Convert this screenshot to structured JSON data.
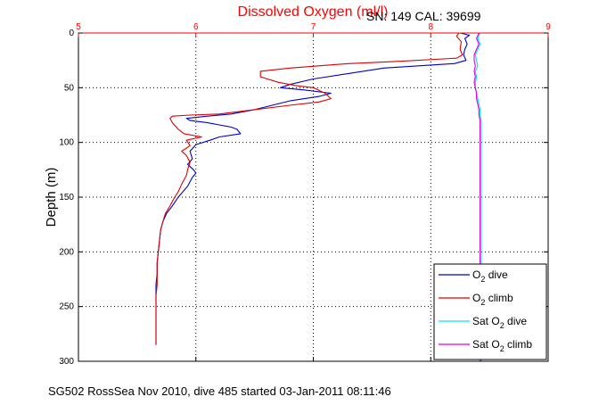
{
  "header": {
    "title": "Dissolved Oxygen (ml/l)",
    "serial": "SN: 149  CAL: 39699"
  },
  "footer": {
    "caption": "SG502 RossSea Nov 2010, dive 485 started 03-Jan-2011 08:11:46"
  },
  "chart_data": {
    "type": "line",
    "title": "Dissolved Oxygen (ml/l)",
    "xlabel": "",
    "ylabel": "Depth (m)",
    "xlim": [
      5,
      9
    ],
    "ylim": [
      0,
      300
    ],
    "y_reversed": true,
    "x_axis_position": "top",
    "grid": true,
    "grid_style": "dotted",
    "x_ticks": [
      5,
      6,
      7,
      8,
      9
    ],
    "y_ticks": [
      0,
      50,
      100,
      150,
      200,
      250,
      300
    ],
    "legend_position": "bottom-right",
    "colors": {
      "title": "#ff0000",
      "x_ticks": "#ff0000",
      "o2_dive": "#0000cc",
      "o2_climb": "#dd0000",
      "sat_dive": "#00e5ee",
      "sat_climb": "#dd00dd"
    },
    "series": [
      {
        "name": "O2 dive",
        "legend": {
          "prefix": "O",
          "sub": "2",
          "suffix": " dive"
        },
        "color": "#0000cc",
        "points": [
          [
            8.25,
            0
          ],
          [
            8.33,
            2
          ],
          [
            8.29,
            5
          ],
          [
            8.31,
            10
          ],
          [
            8.29,
            15
          ],
          [
            8.28,
            20
          ],
          [
            8.3,
            25
          ],
          [
            8.2,
            28
          ],
          [
            7.6,
            32
          ],
          [
            7.3,
            37
          ],
          [
            7.0,
            42
          ],
          [
            6.8,
            47
          ],
          [
            6.72,
            50
          ],
          [
            6.92,
            52
          ],
          [
            7.15,
            55
          ],
          [
            7.05,
            58
          ],
          [
            6.8,
            62
          ],
          [
            6.65,
            66
          ],
          [
            6.5,
            70
          ],
          [
            6.3,
            74
          ],
          [
            6.1,
            76
          ],
          [
            5.92,
            78
          ],
          [
            5.95,
            80
          ],
          [
            6.1,
            82
          ],
          [
            6.2,
            84
          ],
          [
            6.3,
            86
          ],
          [
            6.35,
            88
          ],
          [
            6.38,
            92
          ],
          [
            6.2,
            95
          ],
          [
            6.12,
            98
          ],
          [
            6.0,
            102
          ],
          [
            5.95,
            108
          ],
          [
            5.97,
            115
          ],
          [
            5.93,
            120
          ],
          [
            5.98,
            125
          ],
          [
            6.0,
            128
          ],
          [
            5.97,
            132
          ],
          [
            5.93,
            140
          ],
          [
            5.85,
            150
          ],
          [
            5.8,
            158
          ],
          [
            5.75,
            165
          ],
          [
            5.72,
            172
          ],
          [
            5.7,
            180
          ],
          [
            5.69,
            190
          ],
          [
            5.68,
            200
          ],
          [
            5.67,
            210
          ],
          [
            5.67,
            220
          ],
          [
            5.66,
            230
          ],
          [
            5.66,
            240
          ],
          [
            5.66,
            250
          ],
          [
            5.66,
            260
          ],
          [
            5.66,
            270
          ],
          [
            5.66,
            280
          ],
          [
            5.66,
            285
          ]
        ]
      },
      {
        "name": "O2 climb",
        "legend": {
          "prefix": "O",
          "sub": "2",
          "suffix": " climb"
        },
        "color": "#dd0000",
        "points": [
          [
            8.24,
            0
          ],
          [
            8.22,
            3
          ],
          [
            8.26,
            8
          ],
          [
            8.25,
            15
          ],
          [
            8.27,
            20
          ],
          [
            8.22,
            23
          ],
          [
            7.7,
            26
          ],
          [
            7.3,
            28
          ],
          [
            6.8,
            32
          ],
          [
            6.55,
            35
          ],
          [
            6.55,
            40
          ],
          [
            6.7,
            45
          ],
          [
            6.85,
            48
          ],
          [
            7.0,
            50
          ],
          [
            7.1,
            55
          ],
          [
            7.15,
            60
          ],
          [
            7.05,
            63
          ],
          [
            6.8,
            66
          ],
          [
            6.5,
            70
          ],
          [
            6.2,
            74
          ],
          [
            5.95,
            75
          ],
          [
            5.8,
            76
          ],
          [
            5.78,
            78
          ],
          [
            5.8,
            82
          ],
          [
            5.85,
            88
          ],
          [
            5.9,
            92
          ],
          [
            6.05,
            95
          ],
          [
            5.92,
            98
          ],
          [
            5.95,
            103
          ],
          [
            5.88,
            108
          ],
          [
            5.92,
            112
          ],
          [
            5.95,
            118
          ],
          [
            5.93,
            125
          ],
          [
            5.92,
            130
          ],
          [
            5.88,
            138
          ],
          [
            5.85,
            145
          ],
          [
            5.82,
            150
          ],
          [
            5.78,
            158
          ],
          [
            5.74,
            165
          ],
          [
            5.72,
            172
          ],
          [
            5.7,
            180
          ],
          [
            5.69,
            190
          ],
          [
            5.68,
            200
          ],
          [
            5.67,
            210
          ],
          [
            5.67,
            220
          ],
          [
            5.67,
            230
          ],
          [
            5.66,
            240
          ],
          [
            5.66,
            250
          ],
          [
            5.66,
            260
          ],
          [
            5.66,
            270
          ],
          [
            5.66,
            280
          ],
          [
            5.66,
            285
          ]
        ]
      },
      {
        "name": "Sat O2 dive",
        "legend": {
          "prefix": "Sat O",
          "sub": "2",
          "suffix": " dive"
        },
        "color": "#00e5ee",
        "points": [
          [
            8.42,
            0
          ],
          [
            8.4,
            5
          ],
          [
            8.42,
            10
          ],
          [
            8.4,
            15
          ],
          [
            8.38,
            20
          ],
          [
            8.39,
            25
          ],
          [
            8.4,
            30
          ],
          [
            8.38,
            35
          ],
          [
            8.39,
            40
          ],
          [
            8.38,
            45
          ],
          [
            8.38,
            50
          ],
          [
            8.39,
            55
          ],
          [
            8.4,
            60
          ],
          [
            8.41,
            65
          ],
          [
            8.42,
            70
          ],
          [
            8.42,
            75
          ],
          [
            8.43,
            80
          ],
          [
            8.43,
            85
          ],
          [
            8.43,
            90
          ],
          [
            8.43,
            100
          ],
          [
            8.43,
            110
          ],
          [
            8.43,
            120
          ],
          [
            8.43,
            130
          ],
          [
            8.43,
            140
          ],
          [
            8.43,
            150
          ],
          [
            8.43,
            160
          ],
          [
            8.43,
            170
          ],
          [
            8.43,
            180
          ],
          [
            8.43,
            190
          ],
          [
            8.43,
            200
          ],
          [
            8.43,
            210
          ],
          [
            8.43,
            220
          ],
          [
            8.43,
            230
          ],
          [
            8.43,
            240
          ],
          [
            8.43,
            250
          ],
          [
            8.43,
            260
          ],
          [
            8.43,
            270
          ],
          [
            8.43,
            280
          ],
          [
            8.43,
            290
          ],
          [
            8.43,
            300
          ]
        ]
      },
      {
        "name": "Sat O2 climb",
        "legend": {
          "prefix": "Sat O",
          "sub": "2",
          "suffix": " climb"
        },
        "color": "#dd00dd",
        "points": [
          [
            8.41,
            0
          ],
          [
            8.39,
            5
          ],
          [
            8.41,
            10
          ],
          [
            8.39,
            15
          ],
          [
            8.37,
            20
          ],
          [
            8.37,
            25
          ],
          [
            8.38,
            30
          ],
          [
            8.37,
            35
          ],
          [
            8.38,
            40
          ],
          [
            8.37,
            45
          ],
          [
            8.38,
            50
          ],
          [
            8.39,
            55
          ],
          [
            8.39,
            60
          ],
          [
            8.4,
            65
          ],
          [
            8.41,
            70
          ],
          [
            8.41,
            75
          ],
          [
            8.42,
            80
          ],
          [
            8.42,
            85
          ],
          [
            8.42,
            90
          ],
          [
            8.42,
            100
          ],
          [
            8.42,
            110
          ],
          [
            8.42,
            120
          ],
          [
            8.42,
            130
          ],
          [
            8.42,
            140
          ],
          [
            8.42,
            150
          ],
          [
            8.42,
            160
          ],
          [
            8.42,
            170
          ],
          [
            8.42,
            180
          ],
          [
            8.42,
            190
          ],
          [
            8.42,
            200
          ],
          [
            8.42,
            210
          ],
          [
            8.42,
            220
          ],
          [
            8.42,
            230
          ],
          [
            8.42,
            240
          ],
          [
            8.42,
            250
          ],
          [
            8.42,
            260
          ],
          [
            8.42,
            270
          ],
          [
            8.42,
            280
          ],
          [
            8.42,
            290
          ],
          [
            8.42,
            300
          ]
        ]
      }
    ]
  }
}
